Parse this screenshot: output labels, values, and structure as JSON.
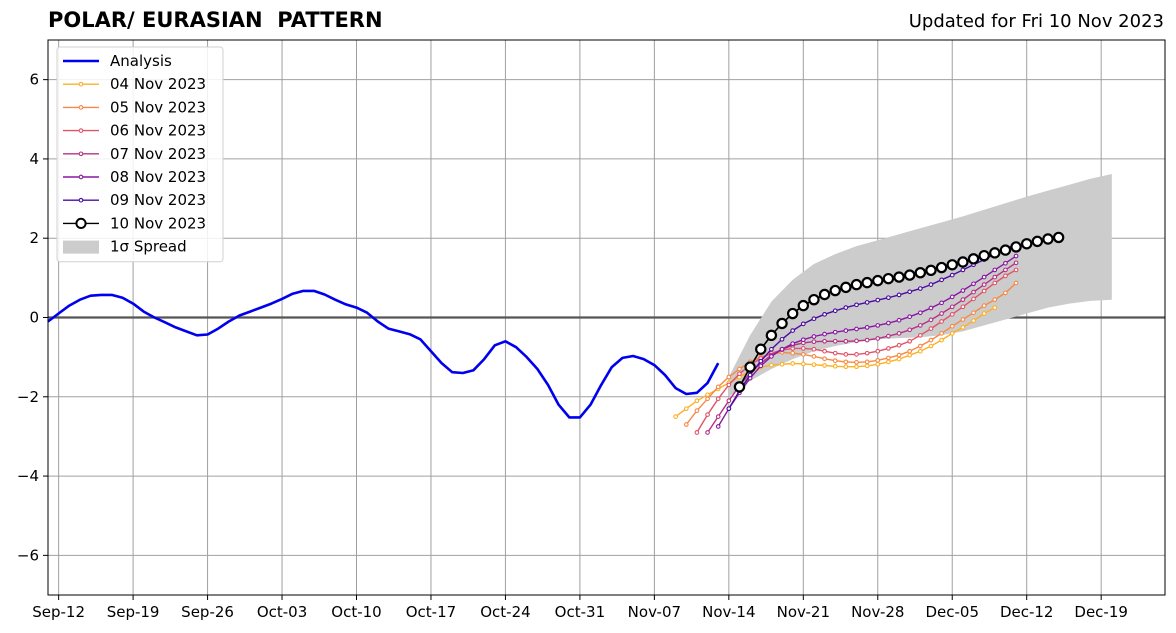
{
  "chart_data": {
    "type": "line",
    "title": "POLAR/ EURASIAN  PATTERN",
    "subtitle": "Updated for Fri 10 Nov 2023",
    "xlabel": "",
    "ylabel": "",
    "xlim": [
      "2023-09-11",
      "2023-12-25"
    ],
    "ylim": [
      -7,
      7
    ],
    "grid": true,
    "legend_position": "top-left",
    "x_tick_labels": [
      "Sep-12",
      "Sep-19",
      "Sep-26",
      "Oct-03",
      "Oct-10",
      "Oct-17",
      "Oct-24",
      "Oct-31",
      "Nov-07",
      "Nov-14",
      "Nov-21",
      "Nov-28",
      "Dec-05",
      "Dec-12",
      "Dec-19"
    ],
    "x_ticks": [
      "2023-09-12",
      "2023-09-19",
      "2023-09-26",
      "2023-10-03",
      "2023-10-10",
      "2023-10-17",
      "2023-10-24",
      "2023-10-31",
      "2023-11-07",
      "2023-11-14",
      "2023-11-21",
      "2023-11-28",
      "2023-12-05",
      "2023-12-12",
      "2023-12-19"
    ],
    "y_ticks": [
      -6,
      -4,
      -2,
      0,
      2,
      4,
      6
    ],
    "y_tick_labels": [
      "−6",
      "−4",
      "−2",
      "0",
      "2",
      "4",
      "6"
    ],
    "analysis": {
      "name": "Analysis",
      "color": "#0000ee",
      "points": [
        [
          "2023-09-11",
          -0.1
        ],
        [
          "2023-09-12",
          0.1
        ],
        [
          "2023-09-13",
          0.3
        ],
        [
          "2023-09-14",
          0.45
        ],
        [
          "2023-09-15",
          0.55
        ],
        [
          "2023-09-16",
          0.57
        ],
        [
          "2023-09-17",
          0.57
        ],
        [
          "2023-09-18",
          0.5
        ],
        [
          "2023-09-19",
          0.35
        ],
        [
          "2023-09-20",
          0.15
        ],
        [
          "2023-09-21",
          0.0
        ],
        [
          "2023-09-22",
          -0.12
        ],
        [
          "2023-09-23",
          -0.25
        ],
        [
          "2023-09-24",
          -0.35
        ],
        [
          "2023-09-25",
          -0.45
        ],
        [
          "2023-09-26",
          -0.43
        ],
        [
          "2023-09-27",
          -0.28
        ],
        [
          "2023-09-28",
          -0.1
        ],
        [
          "2023-09-29",
          0.05
        ],
        [
          "2023-09-30",
          0.15
        ],
        [
          "2023-10-01",
          0.25
        ],
        [
          "2023-10-02",
          0.35
        ],
        [
          "2023-10-03",
          0.47
        ],
        [
          "2023-10-04",
          0.6
        ],
        [
          "2023-10-05",
          0.67
        ],
        [
          "2023-10-06",
          0.67
        ],
        [
          "2023-10-07",
          0.58
        ],
        [
          "2023-10-08",
          0.45
        ],
        [
          "2023-10-09",
          0.33
        ],
        [
          "2023-10-10",
          0.25
        ],
        [
          "2023-10-11",
          0.12
        ],
        [
          "2023-10-12",
          -0.1
        ],
        [
          "2023-10-13",
          -0.28
        ],
        [
          "2023-10-14",
          -0.35
        ],
        [
          "2023-10-15",
          -0.42
        ],
        [
          "2023-10-16",
          -0.55
        ],
        [
          "2023-10-17",
          -0.85
        ],
        [
          "2023-10-18",
          -1.15
        ],
        [
          "2023-10-19",
          -1.38
        ],
        [
          "2023-10-20",
          -1.4
        ],
        [
          "2023-10-21",
          -1.33
        ],
        [
          "2023-10-22",
          -1.05
        ],
        [
          "2023-10-23",
          -0.7
        ],
        [
          "2023-10-24",
          -0.6
        ],
        [
          "2023-10-25",
          -0.75
        ],
        [
          "2023-10-26",
          -1.0
        ],
        [
          "2023-10-27",
          -1.3
        ],
        [
          "2023-10-28",
          -1.7
        ],
        [
          "2023-10-29",
          -2.2
        ],
        [
          "2023-10-30",
          -2.52
        ],
        [
          "2023-10-31",
          -2.52
        ],
        [
          "2023-11-01",
          -2.2
        ],
        [
          "2023-11-02",
          -1.7
        ],
        [
          "2023-11-03",
          -1.25
        ],
        [
          "2023-11-04",
          -1.02
        ],
        [
          "2023-11-05",
          -0.97
        ],
        [
          "2023-11-06",
          -1.05
        ],
        [
          "2023-11-07",
          -1.2
        ],
        [
          "2023-11-08",
          -1.45
        ],
        [
          "2023-11-09",
          -1.78
        ],
        [
          "2023-11-10",
          -1.93
        ],
        [
          "2023-11-11",
          -1.9
        ],
        [
          "2023-11-12",
          -1.65
        ],
        [
          "2023-11-13",
          -1.15
        ]
      ]
    },
    "spread": {
      "name": "1σ Spread",
      "color": "#cccccc",
      "x": [
        "2023-11-14",
        "2023-11-16",
        "2023-11-18",
        "2023-11-20",
        "2023-11-22",
        "2023-11-24",
        "2023-11-26",
        "2023-11-28",
        "2023-11-30",
        "2023-12-02",
        "2023-12-04",
        "2023-12-06",
        "2023-12-08",
        "2023-12-10",
        "2023-12-12",
        "2023-12-14",
        "2023-12-16",
        "2023-12-18",
        "2023-12-20"
      ],
      "upper": [
        -1.5,
        -0.45,
        0.4,
        0.95,
        1.35,
        1.6,
        1.8,
        1.95,
        2.1,
        2.25,
        2.4,
        2.55,
        2.72,
        2.88,
        3.05,
        3.2,
        3.35,
        3.5,
        3.62
      ],
      "lower": [
        -2.0,
        -1.6,
        -1.3,
        -1.05,
        -0.85,
        -0.72,
        -0.62,
        -0.55,
        -0.52,
        -0.5,
        -0.45,
        -0.35,
        -0.2,
        -0.05,
        0.1,
        0.25,
        0.35,
        0.42,
        0.45
      ]
    },
    "forecasts": [
      {
        "name": "04 Nov 2023",
        "color": "#fcb024",
        "start": "2023-11-09",
        "values": [
          -2.5,
          -2.3,
          -2.1,
          -1.95,
          -1.8,
          -1.65,
          -1.5,
          -1.35,
          -1.25,
          -1.2,
          -1.18,
          -1.16,
          -1.17,
          -1.19,
          -1.21,
          -1.23,
          -1.24,
          -1.24,
          -1.22,
          -1.18,
          -1.12,
          -1.05,
          -0.95,
          -0.85,
          -0.72,
          -0.57,
          -0.4,
          -0.25,
          -0.08,
          0.1,
          0.25
        ]
      },
      {
        "name": "05 Nov 2023",
        "color": "#f58945",
        "start": "2023-11-10",
        "values": [
          -2.7,
          -2.35,
          -2.05,
          -1.75,
          -1.5,
          -1.3,
          -1.12,
          -1.0,
          -0.92,
          -0.88,
          -0.9,
          -0.93,
          -0.98,
          -1.04,
          -1.09,
          -1.12,
          -1.13,
          -1.12,
          -1.08,
          -1.02,
          -0.95,
          -0.85,
          -0.72,
          -0.57,
          -0.4,
          -0.22,
          -0.05,
          0.12,
          0.3,
          0.45,
          0.62,
          0.87
        ]
      },
      {
        "name": "06 Nov 2023",
        "color": "#e0546a",
        "start": "2023-11-11",
        "values": [
          -2.9,
          -2.45,
          -2.05,
          -1.7,
          -1.42,
          -1.2,
          -1.03,
          -0.9,
          -0.82,
          -0.78,
          -0.78,
          -0.8,
          -0.85,
          -0.9,
          -0.93,
          -0.93,
          -0.9,
          -0.85,
          -0.78,
          -0.7,
          -0.6,
          -0.45,
          -0.28,
          -0.1,
          0.08,
          0.27,
          0.47,
          0.67,
          0.87,
          1.05,
          1.2
        ]
      },
      {
        "name": "07 Nov 2023",
        "color": "#b43286",
        "start": "2023-11-12",
        "values": [
          -2.9,
          -2.5,
          -2.1,
          -1.72,
          -1.4,
          -1.15,
          -0.95,
          -0.8,
          -0.7,
          -0.64,
          -0.61,
          -0.6,
          -0.6,
          -0.6,
          -0.59,
          -0.57,
          -0.53,
          -0.47,
          -0.4,
          -0.31,
          -0.2,
          -0.06,
          0.1,
          0.27,
          0.45,
          0.64,
          0.83,
          1.02,
          1.2,
          1.38
        ]
      },
      {
        "name": "08 Nov 2023",
        "color": "#8a17a3",
        "start": "2023-11-13",
        "values": [
          -2.75,
          -2.3,
          -1.9,
          -1.53,
          -1.22,
          -0.98,
          -0.8,
          -0.66,
          -0.56,
          -0.48,
          -0.42,
          -0.37,
          -0.33,
          -0.29,
          -0.25,
          -0.2,
          -0.14,
          -0.07,
          0.02,
          0.12,
          0.24,
          0.37,
          0.52,
          0.68,
          0.85,
          1.02,
          1.2,
          1.37,
          1.55
        ]
      },
      {
        "name": "09 Nov 2023",
        "color": "#4b0ca0",
        "start": "2023-11-14",
        "values": [
          -2.3,
          -1.85,
          -1.45,
          -1.1,
          -0.8,
          -0.55,
          -0.33,
          -0.16,
          -0.03,
          0.08,
          0.17,
          0.25,
          0.32,
          0.38,
          0.44,
          0.5,
          0.57,
          0.65,
          0.73,
          0.83,
          0.95,
          1.07,
          1.2,
          1.33,
          1.46,
          1.6,
          1.73,
          1.85
        ]
      },
      {
        "name": "10 Nov 2023",
        "color": "#000000",
        "start": "2023-11-15",
        "values": [
          -1.75,
          -1.25,
          -0.8,
          -0.45,
          -0.15,
          0.1,
          0.3,
          0.45,
          0.58,
          0.68,
          0.76,
          0.83,
          0.88,
          0.93,
          0.98,
          1.02,
          1.07,
          1.13,
          1.19,
          1.26,
          1.33,
          1.4,
          1.48,
          1.56,
          1.63,
          1.7,
          1.78,
          1.86,
          1.92,
          1.98,
          2.02
        ]
      }
    ]
  }
}
